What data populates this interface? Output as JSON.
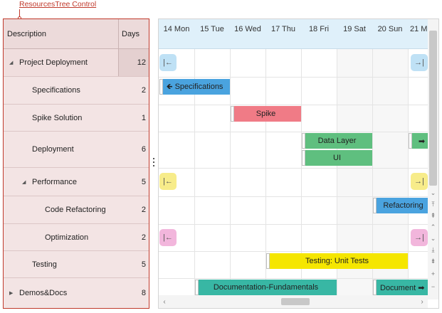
{
  "callout": {
    "label": "ResourcesTree Control"
  },
  "tree": {
    "columns": {
      "description": "Description",
      "days": "Days"
    },
    "rows": [
      {
        "label": "Project Deployment",
        "days": "12",
        "expanded": true
      },
      {
        "label": "Specifications",
        "days": "2"
      },
      {
        "label": "Spike Solution",
        "days": "1"
      },
      {
        "label": "Deployment",
        "days": "6"
      },
      {
        "label": "Performance",
        "days": "5",
        "expanded": true
      },
      {
        "label": "Code Refactoring",
        "days": "2"
      },
      {
        "label": "Optimization",
        "days": "2"
      },
      {
        "label": "Testing",
        "days": "5"
      },
      {
        "label": "Demos&Docs",
        "days": "8",
        "expanded": false
      }
    ]
  },
  "gantt": {
    "days": [
      "14 Mon",
      "15 Tue",
      "16 Wed",
      "17 Thu",
      "18 Fri",
      "19 Sat",
      "20 Sun",
      "21 Mon"
    ],
    "bars": [
      {
        "label": "Specifications",
        "color": "#4aa3df"
      },
      {
        "label": "Spike",
        "color": "#f07b86"
      },
      {
        "label": "Data Layer",
        "color": "#5fbf7f"
      },
      {
        "label": "UI",
        "color": "#5fbf7f"
      },
      {
        "label": "Refactoring",
        "color": "#4aa3df"
      },
      {
        "label": "Testing: Unit Tests",
        "color": "#f5e600"
      },
      {
        "label": "Documentation-Fundamentals",
        "color": "#38b7a4"
      },
      {
        "label": "Document",
        "color": "#38b7a4"
      }
    ],
    "nav_colors": {
      "blue": "#bfe1f5",
      "yellow": "#f7ec8a",
      "pink": "#f2b6dc",
      "green": "#5fbf7f"
    }
  }
}
